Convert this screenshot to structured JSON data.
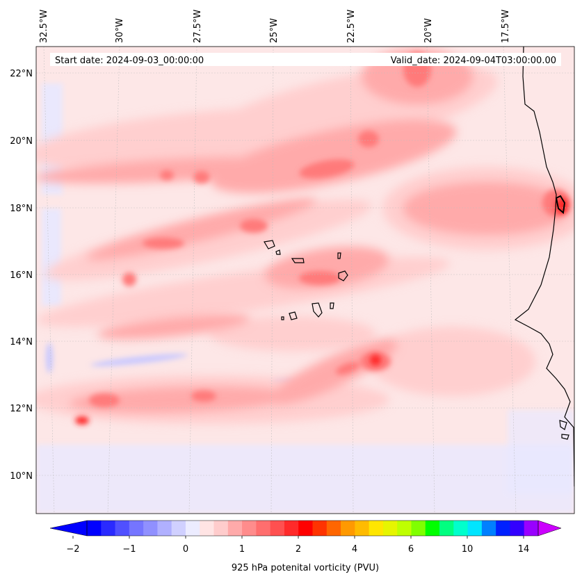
{
  "map": {
    "start_label": "Start date: 2024-09-03_00:00:00",
    "valid_label": "Valid_date: 2024-09-04T03:00:00.00",
    "lon_ticks": [
      "32.5°W",
      "30°W",
      "27.5°W",
      "25°W",
      "22.5°W",
      "20°W",
      "17.5°W"
    ],
    "lat_ticks": [
      "22°N",
      "20°N",
      "18°N",
      "16°N",
      "14°N",
      "12°N",
      "10°N"
    ],
    "lon_range": [
      -33.0,
      -15.5
    ],
    "lat_range": [
      8.9,
      22.8
    ],
    "gridlines": true,
    "colors": {
      "ocean_background": "#fde7e7",
      "coastline": "#000000"
    }
  },
  "colorbar": {
    "label": "925 hPa potenital vorticity (PVU)",
    "tick_labels": [
      "−2",
      "−1",
      "0",
      "1",
      "2",
      "4",
      "6",
      "10",
      "14"
    ],
    "extend": "both",
    "colors": [
      "#0000ff",
      "#2a2aff",
      "#5050ff",
      "#7575ff",
      "#9090ff",
      "#b0b0ff",
      "#d0d0ff",
      "#ececff",
      "#ffe4e4",
      "#ffcccc",
      "#ffaaaa",
      "#ff8c8c",
      "#ff6e6e",
      "#ff5050",
      "#ff2a2a",
      "#ff0000",
      "#ff3300",
      "#ff6600",
      "#ff9900",
      "#ffbb00",
      "#ffe600",
      "#e6f500",
      "#bfff00",
      "#80ff00",
      "#00ff00",
      "#00ff80",
      "#00ffcc",
      "#00e5ff",
      "#0080ff",
      "#0020ff",
      "#3300ff",
      "#9900ff"
    ],
    "under_color": "#0000ff",
    "over_color": "#cc00ff"
  }
}
